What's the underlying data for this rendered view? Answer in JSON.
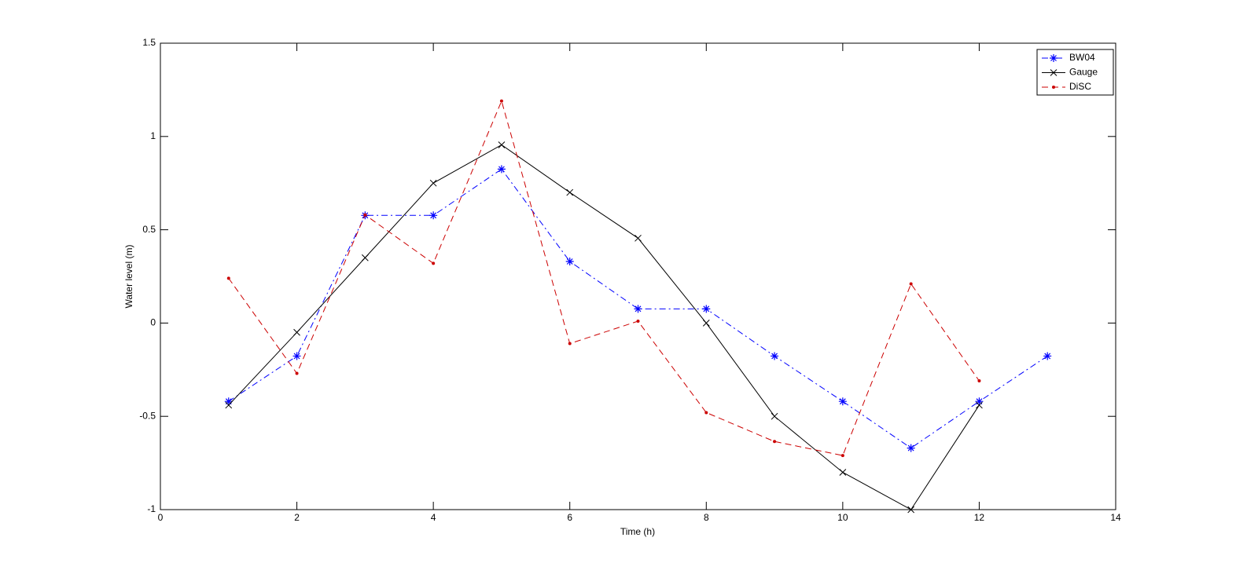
{
  "chart_data": {
    "type": "line",
    "xlabel": "Time (h)",
    "ylabel": "Water level (m)",
    "x": [
      1,
      2,
      3,
      4,
      5,
      6,
      7,
      8,
      9,
      10,
      11,
      12,
      13
    ],
    "series": [
      {
        "name": "BW04",
        "color": "#0000ff",
        "line_style": "-.",
        "marker": "*",
        "values": [
          -0.42,
          -0.177,
          0.577,
          0.577,
          0.825,
          0.33,
          0.076,
          0.076,
          -0.177,
          -0.42,
          -0.67,
          -0.42,
          -0.177
        ]
      },
      {
        "name": "Gauge",
        "color": "#000000",
        "line_style": "-",
        "marker": "x",
        "values": [
          -0.44,
          -0.05,
          0.35,
          0.75,
          0.955,
          0.7,
          0.455,
          0,
          -0.5,
          -0.8,
          -1.0,
          -0.44,
          null
        ]
      },
      {
        "name": "DiSC",
        "color": "#cc0000",
        "line_style": "--",
        "marker": ".",
        "values": [
          0.24,
          -0.27,
          0.58,
          0.32,
          1.19,
          -0.11,
          0.01,
          -0.48,
          -0.635,
          -0.71,
          0.21,
          -0.31,
          null
        ]
      }
    ],
    "xlim": [
      0,
      14
    ],
    "xticks": [
      0,
      2,
      4,
      6,
      8,
      10,
      12,
      14
    ],
    "ylim": [
      -1,
      1.5
    ],
    "yticks": [
      -1,
      -0.5,
      0,
      0.5,
      1,
      1.5
    ],
    "legend": "top-right"
  }
}
